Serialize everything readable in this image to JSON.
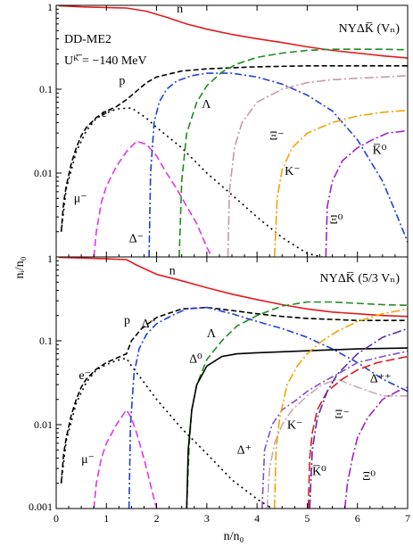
{
  "figure": {
    "xlabel": "n/n₀",
    "ylabel": "nᵢ/n₀",
    "notes": [
      "DD-ME2",
      "Uᴷ̅ = −140 MeV"
    ]
  },
  "chart_data": [
    {
      "type": "line",
      "panel": "top",
      "title": "NYΔK̅ (Vₙ)",
      "xlim": [
        0,
        7
      ],
      "ylim": [
        0.001,
        1
      ],
      "yscale": "log",
      "xticks": [
        0,
        1,
        2,
        3,
        4,
        5,
        6,
        7
      ],
      "yticks": [
        {
          "v": 0.01,
          "label": "0.01"
        },
        {
          "v": 0.1,
          "label": "0.1"
        },
        {
          "v": 1,
          "label": "1"
        }
      ],
      "series": [
        {
          "name": "n",
          "color": "#e31a1c",
          "dash": "",
          "label_pos": [
            2.4,
            0.82
          ],
          "x": [
            0.05,
            0.5,
            1.0,
            1.4,
            1.8,
            2.2,
            2.6,
            3.0,
            3.5,
            4.0,
            4.5,
            5.0,
            5.5,
            6.0,
            6.5,
            7.0
          ],
          "y": [
            0.99,
            0.96,
            0.94,
            0.93,
            0.85,
            0.72,
            0.6,
            0.52,
            0.45,
            0.4,
            0.36,
            0.32,
            0.29,
            0.27,
            0.25,
            0.235
          ]
        },
        {
          "name": "p",
          "color": "#000000",
          "dash": "6,3",
          "label_pos": [
            1.25,
            0.115
          ],
          "x": [
            0.1,
            0.15,
            0.2,
            0.3,
            0.4,
            0.5,
            0.6,
            0.8,
            1.0,
            1.2,
            1.4,
            1.6,
            1.8,
            2.0,
            2.5,
            3.0,
            3.5,
            4.0,
            5.0,
            6.0,
            7.0
          ],
          "y": [
            0.002,
            0.0045,
            0.007,
            0.013,
            0.02,
            0.028,
            0.035,
            0.046,
            0.055,
            0.062,
            0.075,
            0.095,
            0.12,
            0.14,
            0.165,
            0.175,
            0.18,
            0.185,
            0.19,
            0.19,
            0.19
          ]
        },
        {
          "name": "e⁻",
          "color": "#000000",
          "dash": "2,4",
          "label_pos": [
            0.9,
            0.047
          ],
          "x": [
            0.1,
            0.2,
            0.4,
            0.6,
            0.8,
            1.0,
            1.2,
            1.5,
            1.8,
            2.0,
            2.5,
            3.0,
            3.5,
            4.0,
            4.5,
            5.0,
            5.3
          ],
          "y": [
            0.002,
            0.0065,
            0.018,
            0.032,
            0.045,
            0.052,
            0.058,
            0.06,
            0.045,
            0.035,
            0.02,
            0.01,
            0.0055,
            0.003,
            0.0017,
            0.0011,
            0.001
          ]
        },
        {
          "name": "μ⁻",
          "color": "#e633e6",
          "dash": "8,4",
          "label_pos": [
            0.35,
            0.0045
          ],
          "x": [
            0.75,
            0.8,
            0.9,
            1.0,
            1.2,
            1.4,
            1.6,
            1.8,
            2.0,
            2.2,
            2.4,
            2.6,
            2.8,
            3.0,
            3.1
          ],
          "y": [
            0.001,
            0.002,
            0.0045,
            0.007,
            0.012,
            0.018,
            0.024,
            0.022,
            0.016,
            0.01,
            0.0065,
            0.004,
            0.0025,
            0.0013,
            0.001
          ]
        },
        {
          "name": "Δ⁻",
          "color": "#1f3fe0",
          "dash": "8,3,2,3",
          "label_pos": [
            1.45,
            0.0015
          ],
          "x": [
            1.85,
            1.88,
            1.95,
            2.05,
            2.2,
            2.4,
            2.7,
            3.0,
            3.5,
            4.0,
            4.5,
            5.0,
            5.5,
            6.0,
            6.5,
            6.8,
            7.0
          ],
          "y": [
            0.001,
            0.01,
            0.04,
            0.07,
            0.1,
            0.125,
            0.145,
            0.155,
            0.155,
            0.14,
            0.115,
            0.085,
            0.055,
            0.025,
            0.008,
            0.003,
            0.0015
          ]
        },
        {
          "name": "Λ",
          "color": "#1e8c1e",
          "dash": "8,4",
          "label_pos": [
            2.9,
            0.06
          ],
          "x": [
            2.45,
            2.5,
            2.6,
            2.8,
            3.0,
            3.3,
            3.6,
            4.0,
            4.5,
            5.0,
            5.5,
            6.0,
            6.5,
            7.0
          ],
          "y": [
            0.001,
            0.008,
            0.03,
            0.07,
            0.11,
            0.16,
            0.2,
            0.24,
            0.27,
            0.29,
            0.3,
            0.3,
            0.3,
            0.295
          ]
        },
        {
          "name": "Ξ⁻",
          "color": "#c49aa8",
          "dash": "10,3,2,3",
          "label_pos": [
            4.25,
            0.025
          ],
          "x": [
            3.42,
            3.45,
            3.55,
            3.7,
            4.0,
            4.5,
            5.0,
            5.5,
            6.0,
            6.5,
            7.0
          ],
          "y": [
            0.001,
            0.006,
            0.02,
            0.04,
            0.07,
            0.1,
            0.12,
            0.13,
            0.135,
            0.14,
            0.145
          ]
        },
        {
          "name": "K⁻",
          "color": "#f0a500",
          "dash": "10,3,2,3",
          "label_pos": [
            4.55,
            0.0095
          ],
          "x": [
            4.35,
            4.4,
            4.5,
            4.7,
            5.0,
            5.5,
            6.0,
            6.5,
            7.0
          ],
          "y": [
            0.001,
            0.005,
            0.011,
            0.02,
            0.03,
            0.04,
            0.048,
            0.053,
            0.056
          ]
        },
        {
          "name": "Ξ⁰",
          "color": "#a020c8",
          "dash": "10,3,2,3",
          "label_pos": [
            5.45,
            0.0025
          ],
          "x": [
            5.37,
            5.4,
            5.5,
            5.7,
            6.0,
            6.3,
            6.6,
            7.0
          ],
          "y": [
            0.001,
            0.004,
            0.008,
            0.014,
            0.02,
            0.025,
            0.03,
            0.032
          ]
        },
        {
          "name": "K̅⁰",
          "color": "#1f3fe0",
          "dash": "8,3,2,3",
          "label_pos": [
            6.3,
            0.017
          ],
          "x": [],
          "y": []
        }
      ]
    },
    {
      "type": "line",
      "panel": "bottom",
      "title": "NYΔK̅ (5/3 Vₙ)",
      "xlabel": "n/n₀",
      "xlim": [
        0,
        7
      ],
      "ylim": [
        0.001,
        1
      ],
      "yscale": "log",
      "xticks": [
        0,
        1,
        2,
        3,
        4,
        5,
        6,
        7
      ],
      "yticks": [
        {
          "v": 0.001,
          "label": "0.001"
        },
        {
          "v": 0.01,
          "label": "0.01"
        },
        {
          "v": 0.1,
          "label": "0.1"
        },
        {
          "v": 1,
          "label": "1"
        }
      ],
      "series": [
        {
          "name": "n",
          "color": "#e31a1c",
          "dash": "",
          "label_pos": [
            2.25,
            0.62
          ],
          "x": [
            0.05,
            0.5,
            1.0,
            1.4,
            1.6,
            2.0,
            2.5,
            3.0,
            3.5,
            4.0,
            4.5,
            5.0,
            5.5,
            6.0,
            6.5,
            7.0
          ],
          "y": [
            0.99,
            0.97,
            0.95,
            0.93,
            0.8,
            0.62,
            0.52,
            0.43,
            0.36,
            0.31,
            0.27,
            0.24,
            0.22,
            0.21,
            0.2,
            0.195
          ]
        },
        {
          "name": "p",
          "color": "#000000",
          "dash": "6,3",
          "label_pos": [
            1.35,
            0.16
          ],
          "x": [
            0.1,
            0.15,
            0.2,
            0.3,
            0.4,
            0.5,
            0.6,
            0.8,
            1.0,
            1.2,
            1.4,
            1.5,
            1.7,
            2.0,
            2.5,
            3.0,
            3.5,
            4.0,
            4.5,
            5.0,
            5.5,
            6.0,
            7.0
          ],
          "y": [
            0.002,
            0.0045,
            0.007,
            0.013,
            0.02,
            0.028,
            0.035,
            0.046,
            0.055,
            0.062,
            0.07,
            0.1,
            0.14,
            0.19,
            0.24,
            0.25,
            0.23,
            0.21,
            0.195,
            0.185,
            0.18,
            0.175,
            0.175
          ]
        },
        {
          "name": "e⁻",
          "color": "#000000",
          "dash": "2,4",
          "label_pos": [
            0.45,
            0.035
          ],
          "x": [
            0.1,
            0.2,
            0.4,
            0.6,
            0.8,
            1.0,
            1.2,
            1.4,
            1.5,
            1.7,
            2.0,
            2.5,
            3.0,
            3.5,
            4.0,
            4.3
          ],
          "y": [
            0.002,
            0.0065,
            0.018,
            0.032,
            0.045,
            0.052,
            0.058,
            0.062,
            0.05,
            0.035,
            0.02,
            0.009,
            0.0045,
            0.0022,
            0.0013,
            0.001
          ]
        },
        {
          "name": "μ⁻",
          "color": "#e633e6",
          "dash": "8,4",
          "label_pos": [
            0.5,
            0.0035
          ],
          "x": [
            0.75,
            0.8,
            0.9,
            1.0,
            1.2,
            1.4,
            1.5,
            1.6,
            1.7,
            1.8,
            1.9,
            2.0
          ],
          "y": [
            0.001,
            0.002,
            0.004,
            0.006,
            0.01,
            0.015,
            0.012,
            0.008,
            0.005,
            0.003,
            0.0017,
            0.001
          ]
        },
        {
          "name": "Δ⁻",
          "color": "#1f3fe0",
          "dash": "8,3,2,3",
          "label_pos": [
            1.7,
            0.145
          ],
          "x": [
            1.45,
            1.48,
            1.55,
            1.65,
            1.8,
            2.0,
            2.3,
            2.6,
            3.0,
            3.5,
            4.0,
            4.5,
            5.0,
            5.5,
            6.0,
            6.5,
            7.0
          ],
          "y": [
            0.001,
            0.01,
            0.04,
            0.08,
            0.12,
            0.16,
            0.2,
            0.24,
            0.25,
            0.21,
            0.17,
            0.14,
            0.11,
            0.08,
            0.055,
            0.035,
            0.025
          ]
        },
        {
          "name": "Λ",
          "color": "#1e8c1e",
          "dash": "8,4",
          "label_pos": [
            3.0,
            0.11
          ],
          "x": [
            2.6,
            2.65,
            2.7,
            2.8,
            3.0,
            3.3,
            3.6,
            4.0,
            4.5,
            5.0,
            5.5,
            6.0,
            6.5,
            7.0
          ],
          "y": [
            0.001,
            0.006,
            0.015,
            0.03,
            0.06,
            0.1,
            0.15,
            0.2,
            0.26,
            0.29,
            0.29,
            0.28,
            0.27,
            0.265
          ]
        },
        {
          "name": "Δ⁰",
          "color": "#000000",
          "dash": "",
          "label_pos": [
            2.65,
            0.055
          ],
          "x": [
            2.6,
            2.63,
            2.7,
            2.8,
            3.0,
            3.3,
            3.6,
            4.0,
            4.5,
            5.0,
            5.5,
            6.0,
            6.5,
            7.0
          ],
          "y": [
            0.001,
            0.005,
            0.015,
            0.03,
            0.05,
            0.065,
            0.07,
            0.072,
            0.074,
            0.076,
            0.078,
            0.08,
            0.081,
            0.082
          ]
        },
        {
          "name": "Δ⁺",
          "color": "#7b52c8",
          "dash": "8,3,2,3",
          "label_pos": [
            3.6,
            0.0045
          ],
          "x": [
            4.1,
            4.15,
            4.3,
            4.5,
            4.8,
            5.0,
            5.3,
            5.6,
            6.0,
            6.5,
            7.0
          ],
          "y": [
            0.001,
            0.005,
            0.01,
            0.015,
            0.02,
            0.025,
            0.032,
            0.04,
            0.055,
            0.065,
            0.075
          ]
        },
        {
          "name": "K⁻",
          "color": "#f0a500",
          "dash": "10,3,2,3",
          "label_pos": [
            4.6,
            0.009
          ],
          "x": [
            4.35,
            4.38,
            4.45,
            4.6,
            4.8,
            5.0,
            5.3,
            5.6,
            6.0,
            6.5,
            7.0
          ],
          "y": [
            0.001,
            0.005,
            0.012,
            0.03,
            0.05,
            0.07,
            0.1,
            0.13,
            0.17,
            0.21,
            0.24
          ]
        },
        {
          "name": "K̅⁰",
          "color": "#c8a8b4",
          "dash": "10,3,2,3",
          "label_pos": [
            5.1,
            0.0025
          ],
          "x": [
            4.2,
            4.25,
            4.35,
            4.5,
            4.7,
            5.0,
            5.3,
            5.6,
            6.0,
            6.5,
            7.0
          ],
          "y": [
            0.001,
            0.003,
            0.006,
            0.01,
            0.015,
            0.022,
            0.03,
            0.035,
            0.028,
            0.022,
            0.022
          ]
        },
        {
          "name": "Δ⁺⁺",
          "color": "#e31a1c",
          "dash": "10,4",
          "label_pos": [
            6.25,
            0.032
          ],
          "x": [
            5.02,
            5.05,
            5.1,
            5.2,
            5.4,
            5.7,
            6.0,
            6.4,
            7.0
          ],
          "y": [
            0.001,
            0.004,
            0.008,
            0.015,
            0.025,
            0.035,
            0.045,
            0.055,
            0.065
          ]
        },
        {
          "name": "Ξ⁻",
          "color": "#5b2aa8",
          "dash": "10,3,2,3",
          "label_pos": [
            5.55,
            0.012
          ],
          "x": [
            5.05,
            5.1,
            5.2,
            5.4,
            5.6,
            6.0,
            6.5,
            7.0
          ],
          "y": [
            0.001,
            0.005,
            0.012,
            0.025,
            0.04,
            0.07,
            0.11,
            0.14
          ]
        },
        {
          "name": "Ξ⁰",
          "color": "#a020c8",
          "dash": "10,3,2,3",
          "label_pos": [
            6.1,
            0.0022
          ],
          "x": [
            5.75,
            5.8,
            5.9,
            6.0,
            6.2,
            6.5,
            6.8,
            7.0
          ],
          "y": [
            0.001,
            0.002,
            0.004,
            0.007,
            0.012,
            0.02,
            0.025,
            0.028
          ]
        }
      ]
    }
  ]
}
